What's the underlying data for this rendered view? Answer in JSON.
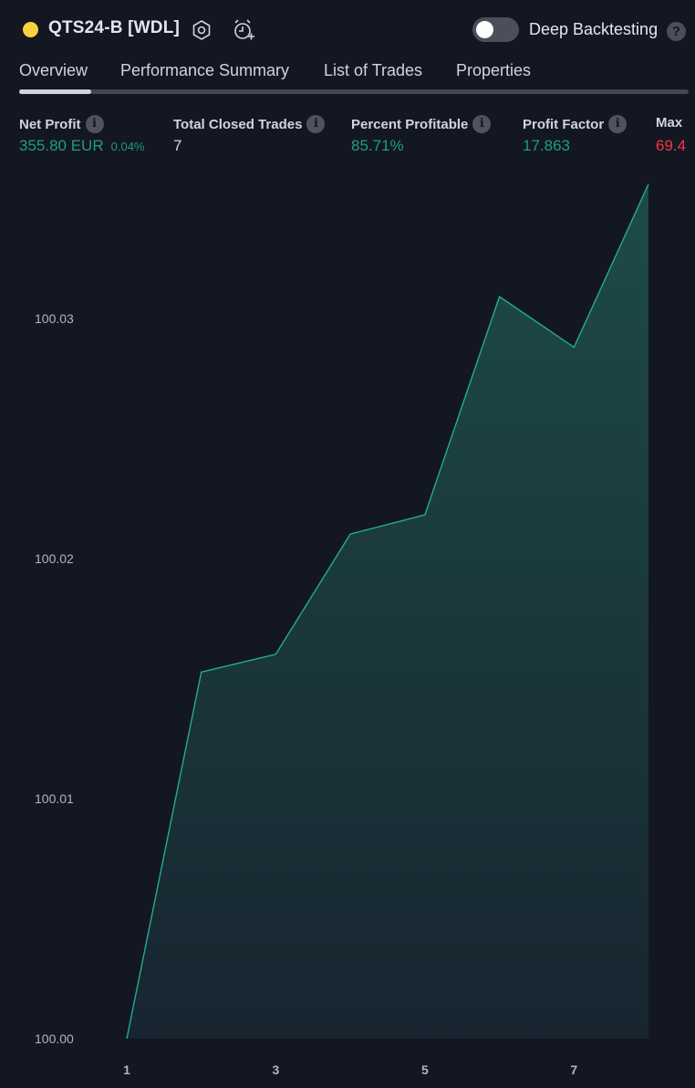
{
  "header": {
    "status_color": "#f7d23d",
    "strategy_title": "QTS24-B [WDL]",
    "settings_icon": "hexagon-settings-icon",
    "alert_icon": "add-alert-clock-icon",
    "deep_backtesting_label": "Deep Backtesting",
    "deep_backtesting_enabled": false,
    "help_glyph": "?"
  },
  "tabs": [
    {
      "label": "Overview",
      "active": true
    },
    {
      "label": "Performance Summary",
      "active": false
    },
    {
      "label": "List of Trades",
      "active": false
    },
    {
      "label": "Properties",
      "active": false
    }
  ],
  "metrics": [
    {
      "label": "Net Profit",
      "value": "355.80 EUR",
      "sub": "0.04%",
      "color": "green"
    },
    {
      "label": "Total Closed Trades",
      "value": "7",
      "sub": "",
      "color": "white"
    },
    {
      "label": "Percent Profitable",
      "value": "85.71%",
      "sub": "",
      "color": "green"
    },
    {
      "label": "Profit Factor",
      "value": "17.863",
      "sub": "",
      "color": "green"
    },
    {
      "label": "Max",
      "value": "69.4",
      "sub": "",
      "color": "red"
    }
  ],
  "info_glyph": "i",
  "colors": {
    "background": "#131722",
    "positive": "#1f9c85",
    "negative": "#f23645",
    "line": "#22ab94"
  },
  "chart_data": {
    "type": "area",
    "x": [
      1,
      2,
      3,
      4,
      5,
      6,
      7,
      8
    ],
    "series": [
      {
        "values": [
          100.0,
          100.01528,
          100.01602,
          100.02103,
          100.02183,
          100.03092,
          100.02881,
          100.03561
        ]
      }
    ],
    "x_tick_labels": [
      "1",
      "3",
      "5",
      "7"
    ],
    "y_tick_labels": [
      "100.00",
      "100.01",
      "100.02",
      "100.03"
    ],
    "ylim": [
      100.0,
      100.0356
    ],
    "xlim": [
      1,
      8
    ],
    "grid": false
  }
}
